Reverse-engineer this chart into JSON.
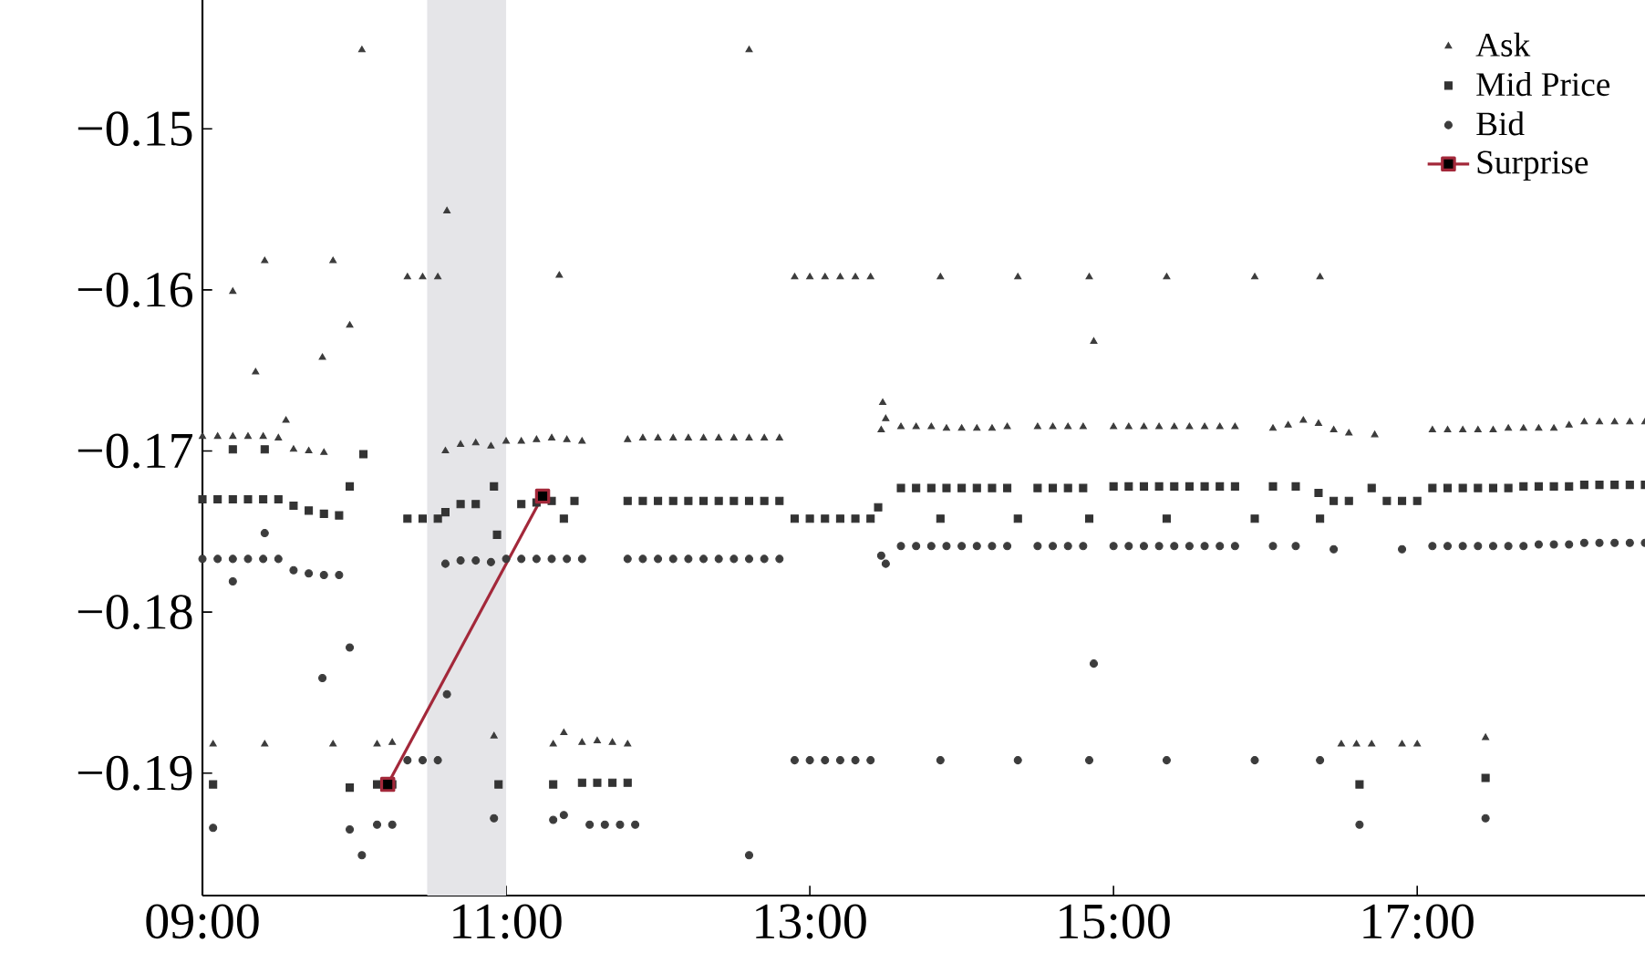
{
  "chart_data": {
    "type": "scatter",
    "xlim": [
      9,
      18.5
    ],
    "ylim": [
      -0.1976,
      -0.142
    ],
    "xticks": [
      {
        "value": 9,
        "label": "09:00"
      },
      {
        "value": 11,
        "label": "11:00"
      },
      {
        "value": 13,
        "label": "13:00"
      },
      {
        "value": 15,
        "label": "15:00"
      },
      {
        "value": 17,
        "label": "17:00"
      }
    ],
    "yticks": [
      {
        "value": -0.15,
        "label": "−0.15"
      },
      {
        "value": -0.16,
        "label": "−0.16"
      },
      {
        "value": -0.17,
        "label": "−0.17"
      },
      {
        "value": -0.18,
        "label": "−0.18"
      },
      {
        "value": -0.19,
        "label": "−0.19"
      }
    ],
    "legend": "top right",
    "bands": [
      {
        "axis": "x",
        "from": 10.48,
        "to": 11.0,
        "color": "#e5e5e8"
      }
    ],
    "series": [
      {
        "name": "Ask",
        "marker": "triangle",
        "color": "#3c3c3c",
        "x": [
          9.0,
          9.1,
          9.2,
          9.3,
          9.4,
          9.5,
          9.6,
          9.7,
          9.8,
          9.07,
          9.2,
          9.35,
          9.41,
          9.41,
          9.55,
          9.79,
          9.86,
          9.86,
          9.97,
          10.05,
          10.15,
          10.25,
          10.35,
          10.45,
          10.55,
          10.61,
          10.6,
          10.7,
          10.8,
          10.9,
          10.92,
          11.0,
          11.1,
          11.2,
          11.3,
          11.31,
          11.35,
          11.38,
          11.4,
          11.5,
          11.5,
          11.6,
          11.7,
          11.8,
          11.8,
          11.9,
          12.0,
          12.1,
          12.2,
          12.3,
          12.4,
          12.5,
          12.6,
          12.7,
          12.8,
          12.6,
          12.9,
          13.0,
          13.1,
          13.2,
          13.3,
          13.4,
          13.47,
          13.48,
          13.5,
          13.6,
          13.7,
          13.8,
          13.86,
          13.9,
          14.0,
          14.1,
          14.2,
          14.3,
          14.37,
          14.5,
          14.6,
          14.7,
          14.8,
          14.84,
          14.87,
          15.0,
          15.1,
          15.2,
          15.3,
          15.35,
          15.4,
          15.5,
          15.6,
          15.7,
          15.8,
          15.93,
          16.05,
          16.15,
          16.25,
          16.35,
          16.36,
          16.45,
          16.55,
          16.72,
          16.5,
          16.6,
          16.7,
          16.9,
          17.0,
          17.45,
          17.1,
          17.2,
          17.3,
          17.4,
          17.5,
          17.6,
          17.7,
          17.8,
          17.9,
          18.0,
          18.1,
          18.2,
          18.3,
          18.4,
          18.5
        ],
        "values": [
          -0.1691,
          -0.1691,
          -0.1691,
          -0.1691,
          -0.1691,
          -0.1692,
          -0.1699,
          -0.17,
          -0.1701,
          -0.1882,
          -0.1601,
          -0.1651,
          -0.1582,
          -0.1882,
          -0.1681,
          -0.1642,
          -0.1582,
          -0.1882,
          -0.1622,
          -0.1451,
          -0.1882,
          -0.1881,
          -0.1592,
          -0.1592,
          -0.1592,
          -0.1551,
          -0.17,
          -0.1696,
          -0.1695,
          -0.1697,
          -0.1877,
          -0.1694,
          -0.1694,
          -0.1693,
          -0.1692,
          -0.1882,
          -0.1591,
          -0.1875,
          -0.1693,
          -0.1694,
          -0.1881,
          -0.188,
          -0.1881,
          -0.1882,
          -0.1693,
          -0.1692,
          -0.1692,
          -0.1692,
          -0.1692,
          -0.1692,
          -0.1692,
          -0.1692,
          -0.1692,
          -0.1692,
          -0.1692,
          -0.1451,
          -0.1592,
          -0.1592,
          -0.1592,
          -0.1592,
          -0.1592,
          -0.1592,
          -0.1687,
          -0.167,
          -0.168,
          -0.1685,
          -0.1685,
          -0.1685,
          -0.1592,
          -0.1686,
          -0.1686,
          -0.1686,
          -0.1686,
          -0.1685,
          -0.1592,
          -0.1685,
          -0.1685,
          -0.1685,
          -0.1685,
          -0.1592,
          -0.1632,
          -0.1685,
          -0.1685,
          -0.1685,
          -0.1685,
          -0.1592,
          -0.1685,
          -0.1685,
          -0.1685,
          -0.1685,
          -0.1685,
          -0.1592,
          -0.1686,
          -0.1684,
          -0.1681,
          -0.1683,
          -0.1592,
          -0.1687,
          -0.1689,
          -0.169,
          -0.1882,
          -0.1882,
          -0.1882,
          -0.1882,
          -0.1882,
          -0.1878,
          -0.1687,
          -0.1687,
          -0.1687,
          -0.1687,
          -0.1687,
          -0.1686,
          -0.1686,
          -0.1686,
          -0.1686,
          -0.1684,
          -0.1682,
          -0.1682,
          -0.1682,
          -0.1682,
          -0.1682
        ]
      },
      {
        "name": "Mid Price",
        "marker": "square",
        "color": "#333333",
        "x": [
          9.0,
          9.1,
          9.2,
          9.3,
          9.4,
          9.5,
          9.6,
          9.7,
          9.8,
          9.9,
          9.07,
          9.2,
          9.41,
          9.97,
          9.97,
          10.06,
          10.15,
          10.25,
          10.35,
          10.45,
          10.55,
          10.6,
          10.7,
          10.8,
          10.92,
          10.94,
          10.95,
          11.1,
          11.2,
          11.3,
          11.38,
          11.31,
          11.45,
          11.5,
          11.6,
          11.7,
          11.8,
          11.8,
          11.9,
          12.0,
          12.1,
          12.2,
          12.3,
          12.4,
          12.5,
          12.6,
          12.7,
          12.8,
          12.9,
          13.0,
          13.1,
          13.2,
          13.3,
          13.4,
          13.45,
          13.6,
          13.7,
          13.8,
          13.86,
          13.9,
          14.0,
          14.1,
          14.2,
          14.3,
          14.37,
          14.5,
          14.6,
          14.7,
          14.8,
          14.84,
          15.0,
          15.1,
          15.2,
          15.3,
          15.35,
          15.4,
          15.5,
          15.6,
          15.7,
          15.8,
          15.93,
          16.05,
          16.2,
          16.35,
          16.36,
          16.45,
          16.55,
          16.62,
          16.7,
          16.8,
          16.9,
          17.0,
          17.45,
          17.1,
          17.2,
          17.3,
          17.4,
          17.5,
          17.6,
          17.7,
          17.8,
          17.9,
          18.0,
          18.1,
          18.2,
          18.3,
          18.4,
          18.5
        ],
        "values": [
          -0.173,
          -0.173,
          -0.173,
          -0.173,
          -0.173,
          -0.173,
          -0.1734,
          -0.1737,
          -0.1739,
          -0.174,
          -0.1907,
          -0.1699,
          -0.1699,
          -0.1722,
          -0.1909,
          -0.1702,
          -0.1907,
          -0.1907,
          -0.1742,
          -0.1742,
          -0.1742,
          -0.1738,
          -0.1733,
          -0.1733,
          -0.1722,
          -0.1752,
          -0.1907,
          -0.1733,
          -0.1732,
          -0.1731,
          -0.1742,
          -0.1907,
          -0.1731,
          -0.1906,
          -0.1906,
          -0.1906,
          -0.1906,
          -0.1731,
          -0.1731,
          -0.1731,
          -0.1731,
          -0.1731,
          -0.1731,
          -0.1731,
          -0.1731,
          -0.1731,
          -0.1731,
          -0.1731,
          -0.1742,
          -0.1742,
          -0.1742,
          -0.1742,
          -0.1742,
          -0.1742,
          -0.1735,
          -0.1723,
          -0.1723,
          -0.1723,
          -0.1742,
          -0.1723,
          -0.1723,
          -0.1723,
          -0.1723,
          -0.1723,
          -0.1742,
          -0.1723,
          -0.1723,
          -0.1723,
          -0.1723,
          -0.1742,
          -0.1722,
          -0.1722,
          -0.1722,
          -0.1722,
          -0.1742,
          -0.1722,
          -0.1722,
          -0.1722,
          -0.1722,
          -0.1722,
          -0.1742,
          -0.1722,
          -0.1722,
          -0.1726,
          -0.1742,
          -0.1731,
          -0.1731,
          -0.1907,
          -0.1723,
          -0.1731,
          -0.1731,
          -0.1731,
          -0.1903,
          -0.1723,
          -0.1723,
          -0.1723,
          -0.1723,
          -0.1723,
          -0.1723,
          -0.1722,
          -0.1722,
          -0.1722,
          -0.1722,
          -0.1721,
          -0.1721,
          -0.1721,
          -0.1721,
          -0.1721
        ]
      },
      {
        "name": "Bid",
        "marker": "circle",
        "color": "#3c3c3c",
        "x": [
          9.0,
          9.1,
          9.2,
          9.3,
          9.4,
          9.5,
          9.6,
          9.7,
          9.8,
          9.9,
          9.07,
          9.2,
          9.41,
          9.79,
          9.97,
          9.97,
          10.05,
          10.15,
          10.25,
          10.35,
          10.45,
          10.55,
          10.61,
          10.92,
          10.6,
          10.7,
          10.8,
          10.9,
          11.0,
          11.1,
          11.2,
          11.3,
          11.4,
          11.5,
          11.31,
          11.38,
          11.55,
          11.65,
          11.75,
          11.85,
          11.8,
          11.9,
          12.0,
          12.1,
          12.2,
          12.3,
          12.4,
          12.5,
          12.6,
          12.7,
          12.8,
          12.6,
          12.9,
          13.0,
          13.1,
          13.2,
          13.3,
          13.4,
          13.47,
          13.5,
          13.6,
          13.7,
          13.8,
          13.86,
          13.9,
          14.0,
          14.1,
          14.2,
          14.3,
          14.37,
          14.5,
          14.6,
          14.7,
          14.8,
          14.84,
          14.87,
          15.0,
          15.1,
          15.2,
          15.3,
          15.35,
          15.4,
          15.5,
          15.6,
          15.7,
          15.8,
          15.93,
          16.05,
          16.2,
          16.36,
          16.45,
          16.62,
          16.9,
          17.45,
          17.1,
          17.2,
          17.3,
          17.4,
          17.5,
          17.6,
          17.7,
          17.8,
          17.9,
          18.0,
          18.1,
          18.2,
          18.3,
          18.4,
          18.5
        ],
        "values": [
          -0.1767,
          -0.1767,
          -0.1767,
          -0.1767,
          -0.1767,
          -0.1767,
          -0.1774,
          -0.1776,
          -0.1777,
          -0.1777,
          -0.1934,
          -0.1781,
          -0.1751,
          -0.1841,
          -0.1822,
          -0.1935,
          -0.1951,
          -0.1932,
          -0.1932,
          -0.1892,
          -0.1892,
          -0.1892,
          -0.1851,
          -0.1928,
          -0.177,
          -0.1768,
          -0.1768,
          -0.1769,
          -0.1767,
          -0.1767,
          -0.1767,
          -0.1767,
          -0.1767,
          -0.1767,
          -0.1929,
          -0.1926,
          -0.1932,
          -0.1932,
          -0.1932,
          -0.1932,
          -0.1767,
          -0.1767,
          -0.1767,
          -0.1767,
          -0.1767,
          -0.1767,
          -0.1767,
          -0.1767,
          -0.1767,
          -0.1767,
          -0.1767,
          -0.1951,
          -0.1892,
          -0.1892,
          -0.1892,
          -0.1892,
          -0.1892,
          -0.1892,
          -0.1765,
          -0.177,
          -0.1759,
          -0.1759,
          -0.1759,
          -0.1892,
          -0.1759,
          -0.1759,
          -0.1759,
          -0.1759,
          -0.1759,
          -0.1892,
          -0.1759,
          -0.1759,
          -0.1759,
          -0.1759,
          -0.1892,
          -0.1832,
          -0.1759,
          -0.1759,
          -0.1759,
          -0.1759,
          -0.1892,
          -0.1759,
          -0.1759,
          -0.1759,
          -0.1759,
          -0.1759,
          -0.1892,
          -0.1759,
          -0.1759,
          -0.1892,
          -0.1761,
          -0.1932,
          -0.1761,
          -0.1928,
          -0.1759,
          -0.1759,
          -0.1759,
          -0.1759,
          -0.1759,
          -0.1759,
          -0.1759,
          -0.1758,
          -0.1758,
          -0.1758,
          -0.1757,
          -0.1757,
          -0.1757,
          -0.1757,
          -0.1757
        ]
      },
      {
        "name": "Surprise",
        "type": "line",
        "marker": "square",
        "line_style": "solid",
        "color": "#a3283a",
        "x": [
          10.22,
          11.24
        ],
        "values": [
          -0.1907,
          -0.1728
        ]
      }
    ]
  }
}
